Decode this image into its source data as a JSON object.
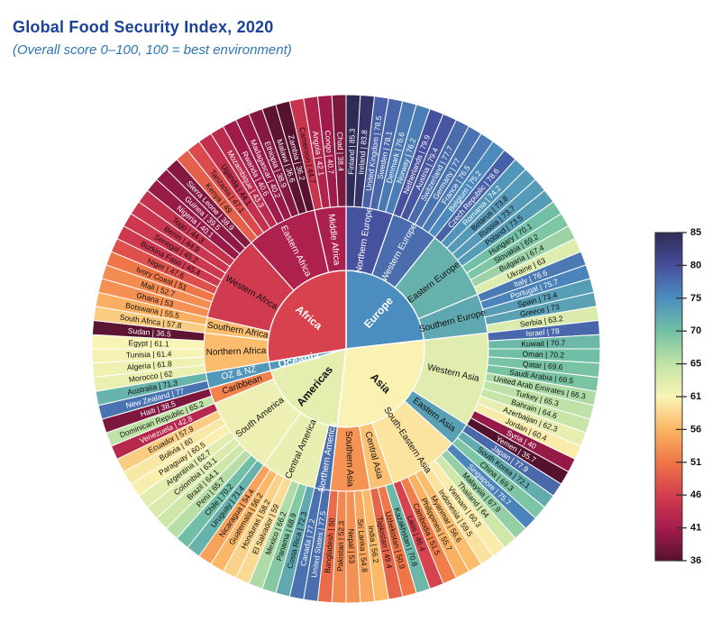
{
  "header": {
    "title": "Global Food Security Index, 2020",
    "subtitle": "(Overall score 0–100, 100 = best environment)",
    "title_color": "#1b4298",
    "subtitle_color": "#2e75b6"
  },
  "chart_data": {
    "type": "sunburst",
    "title": "Global Food Security Index, 2020",
    "subtitle": "(Overall score 0–100, 100 = best environment)",
    "label_separator": " | ",
    "value_range": [
      36,
      85
    ],
    "legend_position": "right",
    "colorbar": {
      "ticks": [
        85,
        80,
        75,
        70,
        65,
        61,
        56,
        51,
        46,
        41,
        36
      ]
    },
    "colormap": [
      {
        "value": 36,
        "color": "#55122f"
      },
      {
        "value": 41,
        "color": "#a61c4c"
      },
      {
        "value": 46,
        "color": "#d43d4f"
      },
      {
        "value": 51,
        "color": "#ef7747"
      },
      {
        "value": 56,
        "color": "#fbb564"
      },
      {
        "value": 61,
        "color": "#f9f4b5"
      },
      {
        "value": 65,
        "color": "#c2e3a6"
      },
      {
        "value": 70,
        "color": "#72c0a4"
      },
      {
        "value": 75,
        "color": "#4c8dbf"
      },
      {
        "value": 80,
        "color": "#474f9d"
      },
      {
        "value": 85,
        "color": "#2f2b57"
      }
    ],
    "continents": [
      {
        "name": "Europe",
        "regions": [
          {
            "name": "Northern Europe",
            "countries": [
              {
                "name": "Finland",
                "value": 85.3
              },
              {
                "name": "Ireland",
                "value": 83.8
              },
              {
                "name": "United Kingdom",
                "value": 78.5
              },
              {
                "name": "Sweden",
                "value": 78.1
              },
              {
                "name": "Denmark",
                "value": 76.6
              },
              {
                "name": "Norway",
                "value": 76.2
              }
            ]
          },
          {
            "name": "Western Europe",
            "countries": [
              {
                "name": "Netherlands",
                "value": 79.9
              },
              {
                "name": "Austria",
                "value": 79.4
              },
              {
                "name": "Switzerland",
                "value": 77.7
              },
              {
                "name": "Germany",
                "value": 77
              },
              {
                "name": "France",
                "value": 76.5
              },
              {
                "name": "Belgium",
                "value": 75.2
              }
            ]
          },
          {
            "name": "Eastern Europe",
            "countries": [
              {
                "name": "Czech Republic",
                "value": 78.6
              },
              {
                "name": "Romania",
                "value": 74.2
              },
              {
                "name": "Belarus",
                "value": 73.8
              },
              {
                "name": "Russia",
                "value": 73.7
              },
              {
                "name": "Poland",
                "value": 73.5
              },
              {
                "name": "Hungary",
                "value": 70.1
              },
              {
                "name": "Slovakia",
                "value": 69.2
              },
              {
                "name": "Bulgaria",
                "value": 67.4
              },
              {
                "name": "Ukraine",
                "value": 63
              }
            ]
          },
          {
            "name": "Southern Europe",
            "countries": [
              {
                "name": "Italy",
                "value": 76.6
              },
              {
                "name": "Portugal",
                "value": 75.7
              },
              {
                "name": "Spain",
                "value": 73.4
              },
              {
                "name": "Greece",
                "value": 73
              },
              {
                "name": "Serbia",
                "value": 63.2
              }
            ]
          }
        ]
      },
      {
        "name": "Asia",
        "regions": [
          {
            "name": "Western Asia",
            "countries": [
              {
                "name": "Israel",
                "value": 78
              },
              {
                "name": "Kuwait",
                "value": 70.7
              },
              {
                "name": "Oman",
                "value": 70.2
              },
              {
                "name": "Qatar",
                "value": 69.6
              },
              {
                "name": "Saudi Arabia",
                "value": 69.5
              },
              {
                "name": "United Arab Emirates",
                "value": 66.3
              },
              {
                "name": "Turkey",
                "value": 65.3
              },
              {
                "name": "Bahrain",
                "value": 64.6
              },
              {
                "name": "Azerbaijan",
                "value": 62.3
              },
              {
                "name": "Jordan",
                "value": 60.4
              },
              {
                "name": "Syria",
                "value": 40
              },
              {
                "name": "Yemen",
                "value": 35.7
              }
            ]
          },
          {
            "name": "Eastern Asia",
            "countries": [
              {
                "name": "Japan",
                "value": 77.9
              },
              {
                "name": "South Korea",
                "value": 72.1
              },
              {
                "name": "China",
                "value": 69.3
              }
            ]
          },
          {
            "name": "South-Eastern Asia",
            "countries": [
              {
                "name": "Singapore",
                "value": 75.7
              },
              {
                "name": "Malaysia",
                "value": 67.9
              },
              {
                "name": "Thailand",
                "value": 64
              },
              {
                "name": "Vietnam",
                "value": 60.3
              },
              {
                "name": "Indonesia",
                "value": 59.5
              },
              {
                "name": "Myanmar",
                "value": 56.6
              },
              {
                "name": "Philippines",
                "value": 55.7
              },
              {
                "name": "Cambodia",
                "value": 51.5
              },
              {
                "name": "Laos",
                "value": 46.4
              }
            ]
          },
          {
            "name": "Central Asia",
            "countries": [
              {
                "name": "Kazakhstan",
                "value": 70.8
              },
              {
                "name": "Uzbekistan",
                "value": 50.9
              },
              {
                "name": "Tajikistan",
                "value": 49.4
              }
            ]
          },
          {
            "name": "Southern Asia",
            "countries": [
              {
                "name": "India",
                "value": 56.2
              },
              {
                "name": "Sri Lanka",
                "value": 54.8
              },
              {
                "name": "Nepal",
                "value": 53
              },
              {
                "name": "Pakistan",
                "value": 52.3
              },
              {
                "name": "Bangladesh",
                "value": 50
              }
            ]
          }
        ]
      },
      {
        "name": "Americas",
        "regions": [
          {
            "name": "Northern America",
            "countries": [
              {
                "name": "United States",
                "value": 77.5
              },
              {
                "name": "Canada",
                "value": 77.2
              }
            ]
          },
          {
            "name": "Central America",
            "countries": [
              {
                "name": "Costa Rica",
                "value": 72.3
              },
              {
                "name": "Panama",
                "value": 68.9
              },
              {
                "name": "Mexico",
                "value": 66.2
              },
              {
                "name": "El Salvador",
                "value": 59
              },
              {
                "name": "Honduras",
                "value": 58.2
              },
              {
                "name": "Guatemala",
                "value": 56.2
              },
              {
                "name": "Nicaragua",
                "value": 54.4
              }
            ]
          },
          {
            "name": "South America",
            "countries": [
              {
                "name": "Uruguay",
                "value": 71.4
              },
              {
                "name": "Chile",
                "value": 70.2
              },
              {
                "name": "Peru",
                "value": 65.7
              },
              {
                "name": "Brazil",
                "value": 64.1
              },
              {
                "name": "Colombia",
                "value": 63.1
              },
              {
                "name": "Argentina",
                "value": 62.7
              },
              {
                "name": "Paraguay",
                "value": 60.5
              },
              {
                "name": "Bolivia",
                "value": 60
              },
              {
                "name": "Ecuador",
                "value": 57.9
              },
              {
                "name": "Venezuela",
                "value": 42.8
              }
            ]
          },
          {
            "name": "Caribbean",
            "countries": [
              {
                "name": "Dominican Republic",
                "value": 65.2
              },
              {
                "name": "Haiti",
                "value": 38.5
              }
            ]
          }
        ]
      },
      {
        "name": "Oceania",
        "regions": [
          {
            "name": "OZ & NZ",
            "countries": [
              {
                "name": "New Zealand",
                "value": 77
              },
              {
                "name": "Australia",
                "value": 71.3
              }
            ]
          }
        ]
      },
      {
        "name": "Africa",
        "regions": [
          {
            "name": "Northern Africa",
            "countries": [
              {
                "name": "Morocco",
                "value": 62
              },
              {
                "name": "Algeria",
                "value": 61.8
              },
              {
                "name": "Tunisia",
                "value": 61.4
              },
              {
                "name": "Egypt",
                "value": 61.1
              },
              {
                "name": "Sudan",
                "value": 36.5
              }
            ]
          },
          {
            "name": "Southern Africa",
            "countries": [
              {
                "name": "South Africa",
                "value": 57.8
              },
              {
                "name": "Botswana",
                "value": 55.5
              }
            ]
          },
          {
            "name": "Western Africa",
            "countries": [
              {
                "name": "Ghana",
                "value": 53
              },
              {
                "name": "Mali",
                "value": 52.7
              },
              {
                "name": "Ivory Coast",
                "value": 51
              },
              {
                "name": "Niger",
                "value": 47.6
              },
              {
                "name": "Burkina Faso",
                "value": 45.4
              },
              {
                "name": "Senegal",
                "value": 45.2
              },
              {
                "name": "Benin",
                "value": 44.9
              },
              {
                "name": "Togo",
                "value": 44.3
              },
              {
                "name": "Nigeria",
                "value": 40.1
              },
              {
                "name": "Guinea",
                "value": 39.5
              },
              {
                "name": "Sierra Leone",
                "value": 38.9
              }
            ]
          },
          {
            "name": "Eastern Africa",
            "countries": [
              {
                "name": "Kenya",
                "value": 49
              },
              {
                "name": "Tanzania",
                "value": 47.1
              },
              {
                "name": "Uganda",
                "value": 44.1
              },
              {
                "name": "Mozambique",
                "value": 43.3
              },
              {
                "name": "Rwanda",
                "value": 40.6
              },
              {
                "name": "Madagascar",
                "value": 40.2
              },
              {
                "name": "Ethiopia",
                "value": 38.9
              },
              {
                "name": "Malawi",
                "value": 36.6
              },
              {
                "name": "Zambia",
                "value": 36.2
              }
            ]
          },
          {
            "name": "Middle Africa",
            "countries": [
              {
                "name": "Cameroon",
                "value": 44.7
              },
              {
                "name": "Angola",
                "value": 42.1
              },
              {
                "name": "Congo",
                "value": 40.7
              },
              {
                "name": "Chad",
                "value": 38.4
              }
            ]
          }
        ]
      }
    ]
  }
}
